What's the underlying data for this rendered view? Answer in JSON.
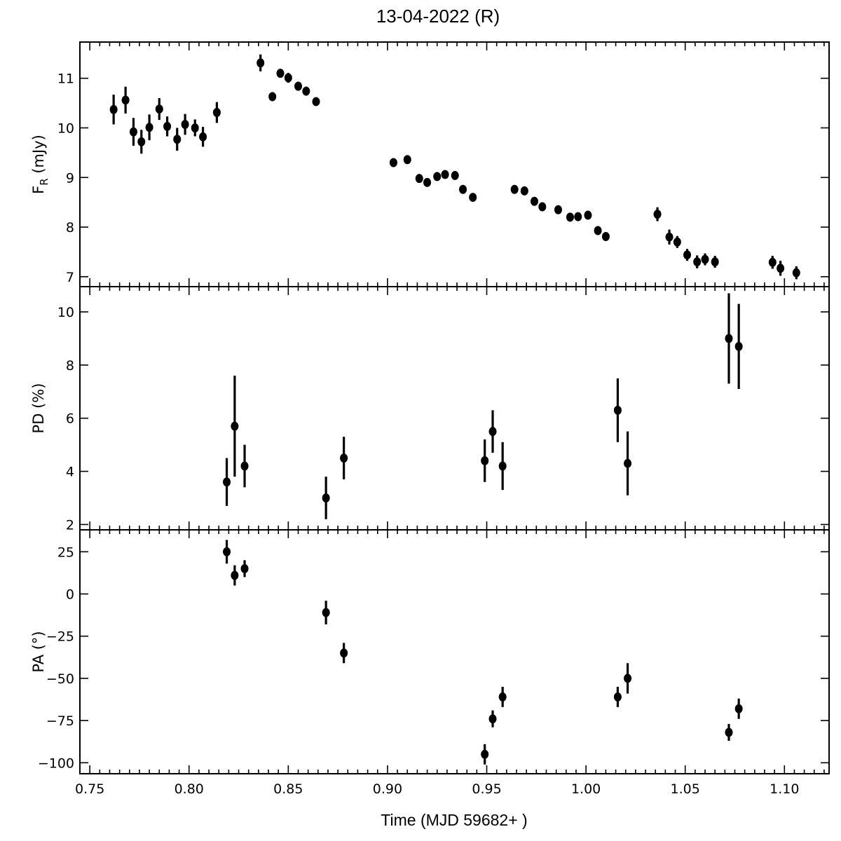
{
  "title": "13-04-2022  (R)",
  "chart_data": {
    "type": "scatter",
    "title": "13-04-2022  (R)",
    "xlabel": "Time (MJD 59682+ )",
    "xlim": [
      0.745,
      1.1225
    ],
    "xticks": [
      0.75,
      0.8,
      0.85,
      0.9,
      0.95,
      1.0,
      1.05,
      1.1
    ],
    "xtick_labels": [
      "0.75",
      "0.80",
      "0.85",
      "0.90",
      "0.95",
      "1.00",
      "1.05",
      "1.10"
    ],
    "grid": false,
    "panels": [
      {
        "name": "flux",
        "ylabel_main": "F",
        "ylabel_sub": "R",
        "ylabel_rest": " (mJy)",
        "ylim": [
          6.8,
          11.73
        ],
        "yticks": [
          7,
          8,
          9,
          10,
          11
        ],
        "ytick_labels": [
          "7",
          "8",
          "9",
          "10",
          "11"
        ],
        "x": [
          0.762,
          0.768,
          0.772,
          0.776,
          0.78,
          0.785,
          0.789,
          0.794,
          0.798,
          0.803,
          0.807,
          0.814,
          0.836,
          0.842,
          0.846,
          0.85,
          0.855,
          0.859,
          0.864,
          0.903,
          0.91,
          0.916,
          0.92,
          0.925,
          0.929,
          0.934,
          0.938,
          0.943,
          0.964,
          0.969,
          0.974,
          0.978,
          0.986,
          0.992,
          0.996,
          1.001,
          1.006,
          1.01,
          1.036,
          1.042,
          1.046,
          1.051,
          1.056,
          1.06,
          1.065,
          1.094,
          1.098,
          1.106
        ],
        "y": [
          10.37,
          10.56,
          9.92,
          9.72,
          10.01,
          10.38,
          10.03,
          9.77,
          10.07,
          10.0,
          9.82,
          10.31,
          11.31,
          10.63,
          11.1,
          11.01,
          10.84,
          10.74,
          10.53,
          9.3,
          9.36,
          8.98,
          8.9,
          9.02,
          9.06,
          9.04,
          8.76,
          8.6,
          8.76,
          8.73,
          8.52,
          8.41,
          8.35,
          8.2,
          8.21,
          8.24,
          7.93,
          7.81,
          8.26,
          7.8,
          7.7,
          7.44,
          7.3,
          7.35,
          7.3,
          7.29,
          7.17,
          7.08
        ],
        "yerr": [
          0.3,
          0.27,
          0.28,
          0.24,
          0.26,
          0.22,
          0.2,
          0.23,
          0.21,
          0.17,
          0.2,
          0.21,
          0.17,
          0.09,
          0.09,
          0.1,
          0.09,
          0.09,
          0.08,
          0.08,
          0.08,
          0.08,
          0.08,
          0.08,
          0.08,
          0.08,
          0.08,
          0.08,
          0.08,
          0.08,
          0.08,
          0.08,
          0.08,
          0.08,
          0.08,
          0.08,
          0.08,
          0.08,
          0.14,
          0.15,
          0.12,
          0.12,
          0.13,
          0.12,
          0.12,
          0.13,
          0.15,
          0.13
        ]
      },
      {
        "name": "polarization-degree",
        "ylabel_main": "PD (%)",
        "ylabel_sub": "",
        "ylabel_rest": "",
        "ylim": [
          1.8,
          10.95
        ],
        "yticks": [
          2,
          4,
          6,
          8,
          10
        ],
        "ytick_labels": [
          "2",
          "4",
          "6",
          "8",
          "10"
        ],
        "x": [
          0.819,
          0.823,
          0.828,
          0.869,
          0.878,
          0.949,
          0.953,
          0.958,
          1.016,
          1.021,
          1.072,
          1.077
        ],
        "y": [
          3.6,
          5.7,
          4.2,
          3.0,
          4.5,
          4.4,
          5.5,
          4.2,
          6.3,
          4.3,
          9.0,
          8.7
        ],
        "yerr": [
          0.9,
          1.9,
          0.8,
          0.8,
          0.8,
          0.8,
          0.8,
          0.9,
          1.2,
          1.2,
          1.7,
          1.6
        ]
      },
      {
        "name": "polarization-angle",
        "ylabel_main": "PA (°)",
        "ylabel_sub": "",
        "ylabel_rest": "",
        "ylim": [
          -106.5,
          38.0
        ],
        "yticks": [
          25,
          0,
          -25,
          -50,
          -75,
          -100
        ],
        "ytick_labels": [
          "25",
          "0",
          "−25",
          "−50",
          "−75",
          "−100"
        ],
        "x": [
          0.819,
          0.823,
          0.828,
          0.869,
          0.878,
          0.949,
          0.953,
          0.958,
          1.016,
          1.021,
          1.072,
          1.077
        ],
        "y": [
          25,
          11,
          15,
          -11,
          -35,
          -95,
          -74,
          -61,
          -61,
          -50,
          -82,
          -68
        ],
        "yerr": [
          7,
          6,
          5,
          7,
          6,
          6,
          5,
          6,
          6,
          9,
          5,
          6
        ]
      }
    ]
  }
}
